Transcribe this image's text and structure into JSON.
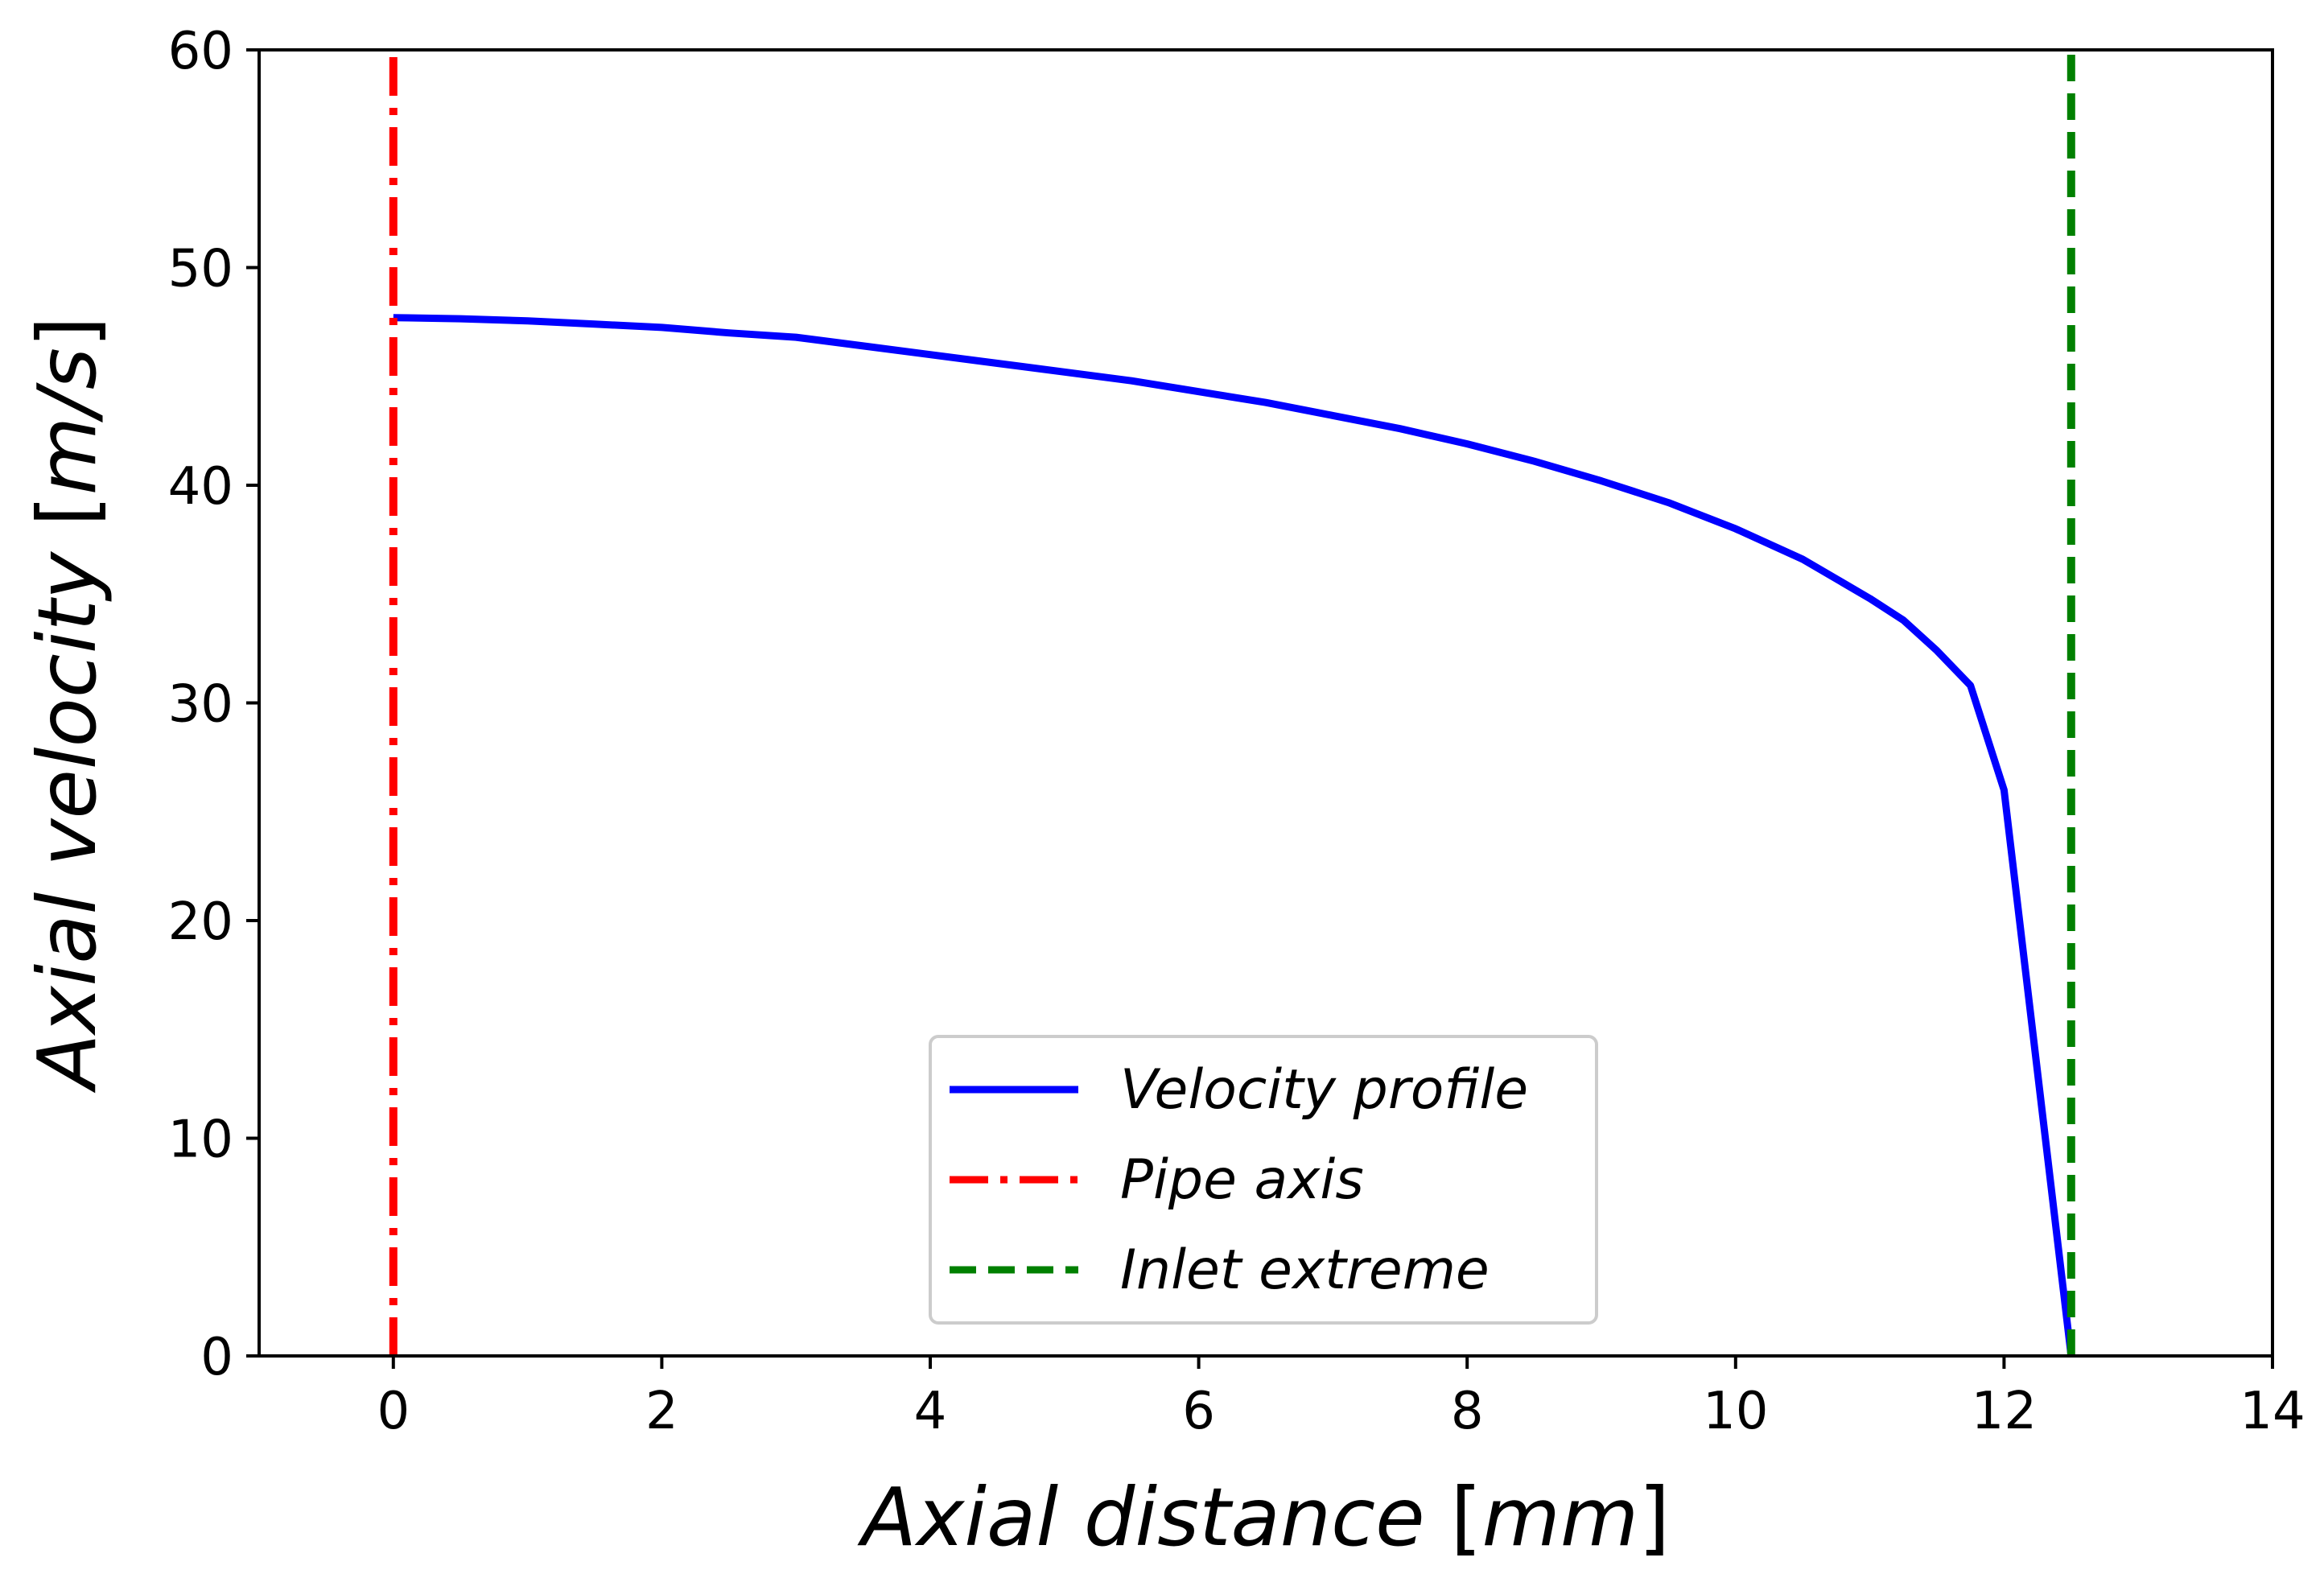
{
  "chart_data": {
    "type": "line",
    "xlabel": "Axial distance [mm]",
    "xlabel_parts": {
      "italic": "Axial distance ",
      "open": "[",
      "unit": "mm",
      "close": "]"
    },
    "ylabel": "Axial velocity [m/s]",
    "ylabel_parts": {
      "italic": "Axial velocity ",
      "open": "[",
      "unit": "m/s",
      "close": "]"
    },
    "xlim": [
      -1,
      14
    ],
    "ylim": [
      0,
      60
    ],
    "xticks": [
      0,
      2,
      4,
      6,
      8,
      10,
      12,
      14
    ],
    "xtick_labels": [
      "0",
      "2",
      "4",
      "6",
      "8",
      "10",
      "12",
      "14"
    ],
    "yticks": [
      0,
      10,
      20,
      30,
      40,
      50,
      60
    ],
    "ytick_labels": [
      "0",
      "10",
      "20",
      "30",
      "40",
      "50",
      "60"
    ],
    "grid": false,
    "legend_position": "lower-center",
    "series": [
      {
        "name": "Velocity profile",
        "color": "#0000ff",
        "style": "solid",
        "x": [
          0,
          0.5,
          1.0,
          1.5,
          2.0,
          2.5,
          3.0,
          3.5,
          4.0,
          4.5,
          5.0,
          5.5,
          6.0,
          6.5,
          7.0,
          7.5,
          8.0,
          8.5,
          9.0,
          9.5,
          10.0,
          10.5,
          11.0,
          11.25,
          11.5,
          11.75,
          12.0,
          12.25,
          12.5
        ],
        "values": [
          47.7,
          47.65,
          47.55,
          47.4,
          47.25,
          47.0,
          46.8,
          46.4,
          46.0,
          45.6,
          45.2,
          44.8,
          44.3,
          43.8,
          43.2,
          42.6,
          41.9,
          41.1,
          40.2,
          39.2,
          38.0,
          36.6,
          34.8,
          33.8,
          32.4,
          30.8,
          26.0,
          13.0,
          0.0
        ]
      },
      {
        "name": "Pipe axis",
        "color": "#ff0000",
        "style": "dashdot",
        "x": [
          0,
          0
        ],
        "values": [
          0,
          60
        ]
      },
      {
        "name": "Inlet extreme",
        "color": "#008000",
        "style": "dashed",
        "x": [
          12.5,
          12.5
        ],
        "values": [
          0,
          60
        ]
      }
    ]
  }
}
